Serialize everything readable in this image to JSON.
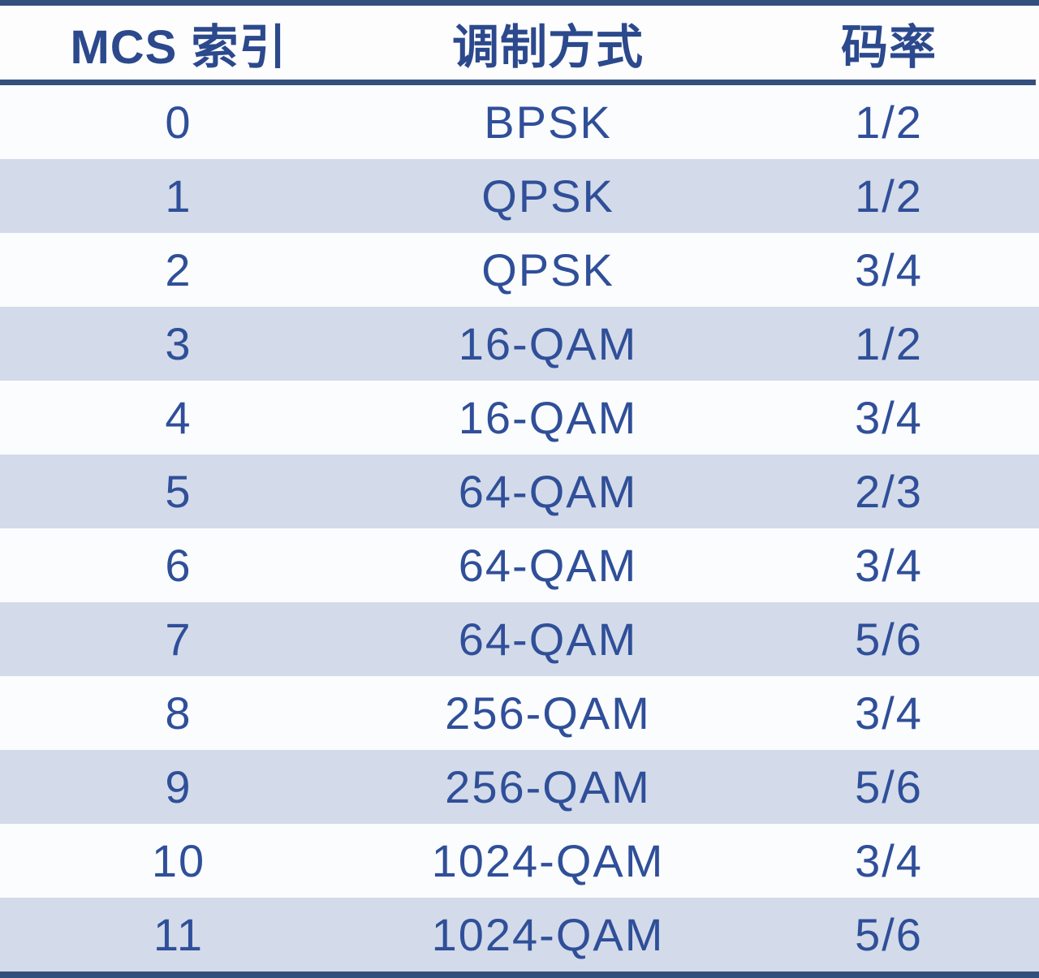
{
  "chart_data": {
    "type": "table",
    "columns": [
      "MCS 索引",
      "调制方式",
      "码率"
    ],
    "rows": [
      [
        "0",
        "BPSK",
        "1/2"
      ],
      [
        "1",
        "QPSK",
        "1/2"
      ],
      [
        "2",
        "QPSK",
        "3/4"
      ],
      [
        "3",
        "16-QAM",
        "1/2"
      ],
      [
        "4",
        "16-QAM",
        "3/4"
      ],
      [
        "5",
        "64-QAM",
        "2/3"
      ],
      [
        "6",
        "64-QAM",
        "3/4"
      ],
      [
        "7",
        "64-QAM",
        "5/6"
      ],
      [
        "8",
        "256-QAM",
        "3/4"
      ],
      [
        "9",
        "256-QAM",
        "5/6"
      ],
      [
        "10",
        "1024-QAM",
        "3/4"
      ],
      [
        "11",
        "1024-QAM",
        "5/6"
      ]
    ],
    "layout": {
      "striping": "alternate rows shaded",
      "legend": "none",
      "grid": "off"
    }
  },
  "colors": {
    "accent_bar": "#33507d",
    "row_alt_background": "#d3dae9",
    "row_base_background": "#fbfcfd",
    "header_text": "#2b498c",
    "cell_text": "#2f4f99"
  }
}
